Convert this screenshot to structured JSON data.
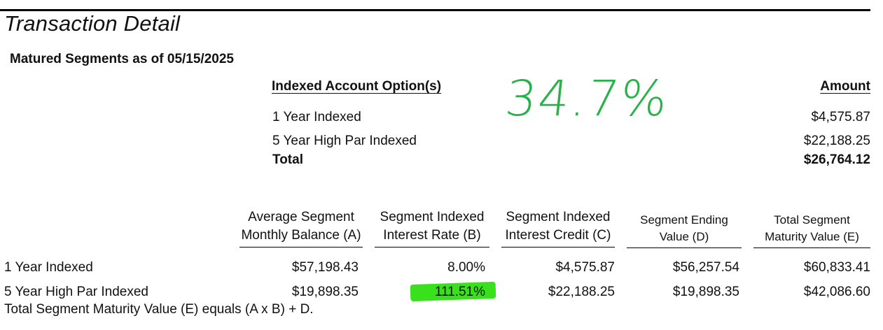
{
  "page": {
    "title": "Transaction Detail",
    "subtitle": "Matured Segments as of 05/15/2025"
  },
  "summary": {
    "header_option": "Indexed Account Option(s)",
    "header_amount": "Amount",
    "rows": [
      {
        "label": "1 Year Indexed",
        "amount": "$4,575.87"
      },
      {
        "label": "5 Year High Par Indexed",
        "amount": "$22,188.25"
      }
    ],
    "total_label": "Total",
    "total_amount": "$26,764.12"
  },
  "annotation": {
    "handwritten": "34.7%",
    "color": "#2ab24a",
    "highlight_color": "#39e01c"
  },
  "table": {
    "columns": [
      {
        "line1": "Average Segment",
        "line2": "Monthly Balance (A)"
      },
      {
        "line1": "Segment Indexed",
        "line2": "Interest Rate (B)"
      },
      {
        "line1": "Segment Indexed",
        "line2": "Interest Credit (C)"
      },
      {
        "line1": "Segment Ending",
        "line2": "Value (D)"
      },
      {
        "line1": "Total Segment",
        "line2": "Maturity Value (E)"
      }
    ],
    "rows": [
      {
        "label": "1 Year Indexed",
        "values": [
          "$57,198.43",
          "8.00%",
          "$4,575.87",
          "$56,257.54",
          "$60,833.41"
        ]
      },
      {
        "label": "5 Year High Par Indexed",
        "values": [
          "$19,898.35",
          "111.51%",
          "$22,188.25",
          "$19,898.35",
          "$42,086.60"
        ]
      }
    ],
    "footnote": "Total Segment Maturity Value (E) equals (A x B) + D."
  }
}
